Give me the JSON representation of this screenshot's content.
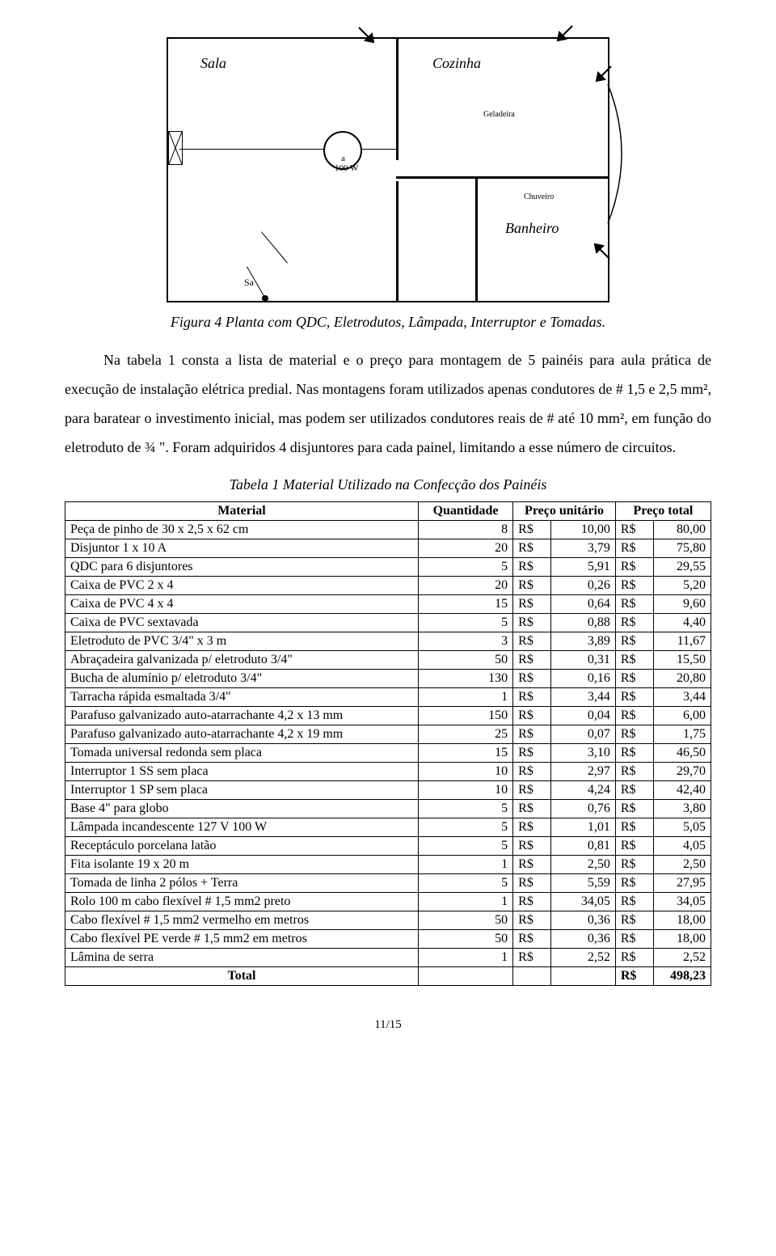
{
  "floorplan": {
    "rooms": {
      "sala": "Sala",
      "cozinha": "Cozinha",
      "banheiro": "Banheiro"
    },
    "labels": {
      "geladeira": "Geladeira",
      "chuveiro": "Chuveiro",
      "lamp_letter": "a",
      "lamp_watt": "100 W",
      "switch": "Sa"
    }
  },
  "figure_caption": "Figura 4 Planta com QDC, Eletrodutos, Lâmpada, Interruptor e Tomadas.",
  "paragraph": {
    "p1": "Na tabela 1 consta a lista de material e o preço para montagem de 5 painéis para aula prática de execução de instalação elétrica predial. Nas montagens foram utilizados apenas condutores de # 1,5 e 2,5 mm², para baratear o investimento inicial, mas podem ser utilizados condutores reais de # até 10 mm², em função do eletroduto de ¾ \". Foram adquiridos 4 disjuntores para cada painel, limitando a esse número de circuitos."
  },
  "table_caption": "Tabela 1 Material Utilizado na Confecção dos Painéis",
  "table": {
    "headers": {
      "material": "Material",
      "quantidade": "Quantidade",
      "preco_unit": "Preço unitário",
      "preco_total": "Preço total"
    },
    "currency": "R$",
    "rows": [
      {
        "name": "Peça de pinho de 30 x 2,5 x 62 cm",
        "qty": "8",
        "unit": "10,00",
        "total": "80,00"
      },
      {
        "name": "Disjuntor 1 x 10 A",
        "qty": "20",
        "unit": "3,79",
        "total": "75,80"
      },
      {
        "name": "QDC para 6 disjuntores",
        "qty": "5",
        "unit": "5,91",
        "total": "29,55"
      },
      {
        "name": "Caixa de PVC 2 x 4",
        "qty": "20",
        "unit": "0,26",
        "total": "5,20"
      },
      {
        "name": "Caixa de PVC 4 x 4",
        "qty": "15",
        "unit": "0,64",
        "total": "9,60"
      },
      {
        "name": "Caixa de PVC sextavada",
        "qty": "5",
        "unit": "0,88",
        "total": "4,40"
      },
      {
        "name": "Eletroduto de PVC 3/4\" x 3 m",
        "qty": "3",
        "unit": "3,89",
        "total": "11,67"
      },
      {
        "name": "Abraçadeira galvanizada p/ eletroduto 3/4\"",
        "qty": "50",
        "unit": "0,31",
        "total": "15,50"
      },
      {
        "name": "Bucha de alumínio p/ eletroduto 3/4\"",
        "qty": "130",
        "unit": "0,16",
        "total": "20,80"
      },
      {
        "name": "Tarracha rápida esmaltada 3/4\"",
        "qty": "1",
        "unit": "3,44",
        "total": "3,44"
      },
      {
        "name": "Parafuso galvanizado auto-atarrachante 4,2 x 13 mm",
        "qty": "150",
        "unit": "0,04",
        "total": "6,00"
      },
      {
        "name": "Parafuso galvanizado auto-atarrachante 4,2 x 19 mm",
        "qty": "25",
        "unit": "0,07",
        "total": "1,75"
      },
      {
        "name": "Tomada universal redonda sem placa",
        "qty": "15",
        "unit": "3,10",
        "total": "46,50"
      },
      {
        "name": "Interruptor 1 SS sem placa",
        "qty": "10",
        "unit": "2,97",
        "total": "29,70"
      },
      {
        "name": "Interruptor 1 SP sem placa",
        "qty": "10",
        "unit": "4,24",
        "total": "42,40"
      },
      {
        "name": "Base 4\" para globo",
        "qty": "5",
        "unit": "0,76",
        "total": "3,80"
      },
      {
        "name": "Lâmpada incandescente 127 V 100 W",
        "qty": "5",
        "unit": "1,01",
        "total": "5,05"
      },
      {
        "name": "Receptáculo porcelana latão",
        "qty": "5",
        "unit": "0,81",
        "total": "4,05"
      },
      {
        "name": "Fita isolante 19 x 20 m",
        "qty": "1",
        "unit": "2,50",
        "total": "2,50"
      },
      {
        "name": "Tomada de linha 2 pólos + Terra",
        "qty": "5",
        "unit": "5,59",
        "total": "27,95"
      },
      {
        "name": "Rolo 100 m cabo flexível # 1,5 mm2 preto",
        "qty": "1",
        "unit": "34,05",
        "total": "34,05"
      },
      {
        "name": "Cabo flexível # 1,5 mm2 vermelho em metros",
        "qty": "50",
        "unit": "0,36",
        "total": "18,00"
      },
      {
        "name": "Cabo flexível PE verde # 1,5 mm2 em metros",
        "qty": "50",
        "unit": "0,36",
        "total": "18,00"
      },
      {
        "name": "Lâmina de serra",
        "qty": "1",
        "unit": "2,52",
        "total": "2,52"
      }
    ],
    "total_label": "Total",
    "total_value": "498,23"
  },
  "page_number": "11/15"
}
